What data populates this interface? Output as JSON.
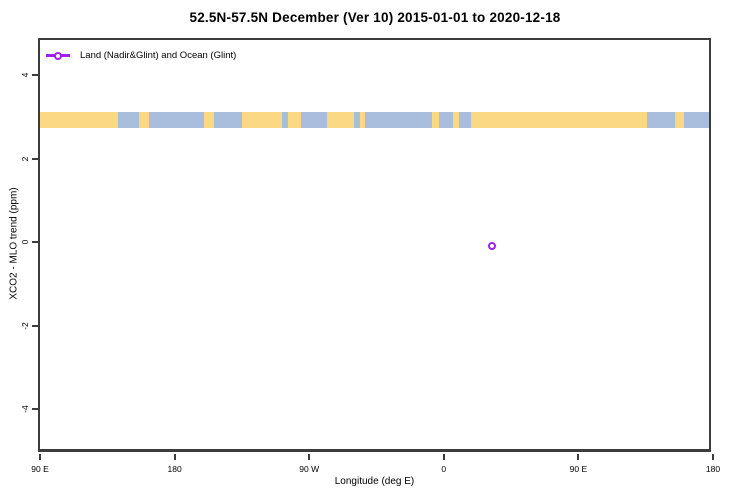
{
  "title": "52.5N-57.5N December (Ver 10)   2015-01-01 to 2020-12-18",
  "legend": {
    "label": "Land (Nadir&Glint) and Ocean (Glint)",
    "marker_color": "#A020F0"
  },
  "axes": {
    "x_label": "Longitude (deg E)",
    "y_label": "XCO2 - MLO trend (ppm)"
  },
  "colors": {
    "accent_purple": "#A020F0",
    "land": "#FAD884",
    "ocean": "#A8BEDC",
    "axis": "#3c3c3c"
  },
  "chart_data": {
    "type": "scatter",
    "title": "52.5N-57.5N December (Ver 10)   2015-01-01 to 2020-12-18",
    "xlabel": "Longitude (deg E)",
    "ylabel": "XCO2 - MLO trend (ppm)",
    "x_axis_deg_range": [
      90,
      540
    ],
    "ylim": [
      -5,
      5
    ],
    "x_ticks": [
      {
        "deg": 90,
        "label": "90 E"
      },
      {
        "deg": 180,
        "label": "180"
      },
      {
        "deg": 270,
        "label": "90 W"
      },
      {
        "deg": 360,
        "label": "0"
      },
      {
        "deg": 450,
        "label": "90 E"
      },
      {
        "deg": 540,
        "label": "180"
      }
    ],
    "y_ticks": [
      {
        "value": 4,
        "label": "4"
      },
      {
        "value": 2,
        "label": "2"
      },
      {
        "value": 0,
        "label": "0"
      },
      {
        "value": -2,
        "label": "-2"
      },
      {
        "value": -4,
        "label": "-4"
      }
    ],
    "series": [
      {
        "name": "Land (Nadir&Glint) and Ocean (Glint)",
        "color": "#A020F0",
        "points": [
          {
            "axis_deg": 392,
            "longitude_deg_e": 32,
            "xco2_mlo_trend_ppm": -0.1
          }
        ]
      }
    ],
    "map_band": {
      "description": "latitude-zone world map strip 52.5N-57.5N",
      "value_range": [
        2.73,
        3.11
      ],
      "ocean_color": "#A8BEDC",
      "land_color": "#FAD884",
      "land_segments_deg": [
        [
          90,
          142
        ],
        [
          156,
          163
        ],
        [
          199.5,
          206.5
        ],
        [
          225,
          252
        ],
        [
          256,
          264.5
        ],
        [
          282,
          300
        ],
        [
          304,
          307
        ],
        [
          352,
          357
        ],
        [
          366,
          370.5
        ],
        [
          378,
          496
        ],
        [
          514.5,
          520.5
        ]
      ]
    }
  }
}
